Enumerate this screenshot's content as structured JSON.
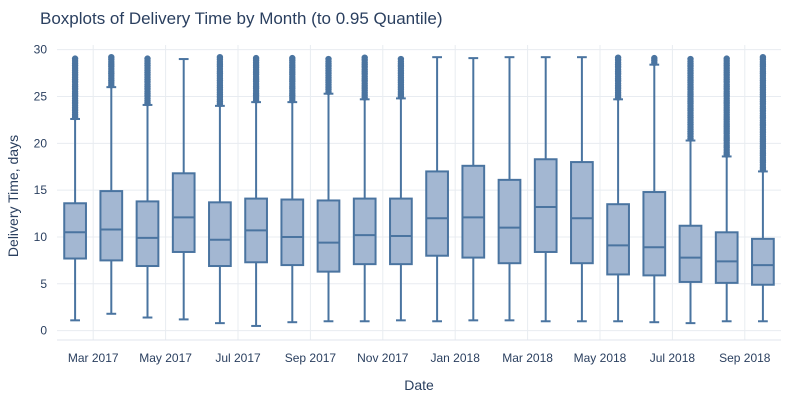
{
  "chart_data": {
    "type": "box",
    "title": "Boxplots of Delivery Time by Month (to 0.95 Quantile)",
    "xlabel": "Date",
    "ylabel": "Delivery Time, days",
    "ylim": [
      -1,
      30.5
    ],
    "yticks": [
      0,
      5,
      10,
      15,
      20,
      25,
      30
    ],
    "xtick_labels": [
      "Mar 2017",
      "May 2017",
      "Jul 2017",
      "Sep 2017",
      "Nov 2017",
      "Jan 2018",
      "Mar 2018",
      "May 2018",
      "Jul 2018",
      "Sep 2018"
    ],
    "grid": true,
    "colors": {
      "box_fill": "#a3b7d2",
      "box_line": "#4a74a0",
      "grid": "#e8ecf1",
      "text": "#2a3f5f"
    },
    "months": [
      "2017-02",
      "2017-03",
      "2017-04",
      "2017-05",
      "2017-06",
      "2017-07",
      "2017-08",
      "2017-09",
      "2017-10",
      "2017-11",
      "2017-12",
      "2018-01",
      "2018-02",
      "2018-03",
      "2018-04",
      "2018-05",
      "2018-06",
      "2018-07",
      "2018-08",
      "2018-09"
    ],
    "boxes": [
      {
        "month": "2017-02",
        "min": 1.1,
        "q1": 7.7,
        "median": 10.5,
        "q3": 13.6,
        "max": 22.6,
        "outliers_from": 22.8
      },
      {
        "month": "2017-03",
        "min": 1.8,
        "q1": 7.5,
        "median": 10.8,
        "q3": 14.9,
        "max": 26.0,
        "outliers_from": 26.2
      },
      {
        "month": "2017-04",
        "min": 1.4,
        "q1": 6.9,
        "median": 9.9,
        "q3": 13.8,
        "max": 24.1,
        "outliers_from": 24.3
      },
      {
        "month": "2017-05",
        "min": 1.2,
        "q1": 8.4,
        "median": 12.1,
        "q3": 16.8,
        "max": 29.0,
        "outliers_from": null
      },
      {
        "month": "2017-06",
        "min": 0.8,
        "q1": 6.9,
        "median": 9.7,
        "q3": 13.7,
        "max": 24.0,
        "outliers_from": 24.2
      },
      {
        "month": "2017-07",
        "min": 0.5,
        "q1": 7.3,
        "median": 10.7,
        "q3": 14.1,
        "max": 24.4,
        "outliers_from": 24.6
      },
      {
        "month": "2017-08",
        "min": 0.9,
        "q1": 7.0,
        "median": 10.0,
        "q3": 14.0,
        "max": 24.4,
        "outliers_from": 24.6
      },
      {
        "month": "2017-09",
        "min": 1.0,
        "q1": 6.3,
        "median": 9.4,
        "q3": 13.9,
        "max": 25.3,
        "outliers_from": 25.5
      },
      {
        "month": "2017-10",
        "min": 1.0,
        "q1": 7.1,
        "median": 10.2,
        "q3": 14.1,
        "max": 24.7,
        "outliers_from": 24.9
      },
      {
        "month": "2017-11",
        "min": 1.1,
        "q1": 7.1,
        "median": 10.1,
        "q3": 14.1,
        "max": 24.8,
        "outliers_from": 25.0
      },
      {
        "month": "2017-12",
        "min": 1.0,
        "q1": 8.0,
        "median": 12.0,
        "q3": 17.0,
        "max": 29.2,
        "outliers_from": null
      },
      {
        "month": "2018-01",
        "min": 1.1,
        "q1": 7.8,
        "median": 12.1,
        "q3": 17.6,
        "max": 29.1,
        "outliers_from": null
      },
      {
        "month": "2018-02",
        "min": 1.1,
        "q1": 7.2,
        "median": 11.0,
        "q3": 16.1,
        "max": 29.2,
        "outliers_from": null
      },
      {
        "month": "2018-03",
        "min": 1.0,
        "q1": 8.4,
        "median": 13.2,
        "q3": 18.3,
        "max": 29.2,
        "outliers_from": null
      },
      {
        "month": "2018-04",
        "min": 1.0,
        "q1": 7.2,
        "median": 12.0,
        "q3": 18.0,
        "max": 29.2,
        "outliers_from": null
      },
      {
        "month": "2018-05",
        "min": 1.0,
        "q1": 6.0,
        "median": 9.1,
        "q3": 13.5,
        "max": 24.7,
        "outliers_from": 24.9
      },
      {
        "month": "2018-06",
        "min": 0.9,
        "q1": 5.9,
        "median": 8.9,
        "q3": 14.8,
        "max": 28.4,
        "outliers_from": 28.6
      },
      {
        "month": "2018-07",
        "min": 0.8,
        "q1": 5.2,
        "median": 7.8,
        "q3": 11.2,
        "max": 20.3,
        "outliers_from": 20.5
      },
      {
        "month": "2018-08",
        "min": 1.0,
        "q1": 5.1,
        "median": 7.4,
        "q3": 10.5,
        "max": 18.6,
        "outliers_from": 18.8
      },
      {
        "month": "2018-09",
        "min": 1.0,
        "q1": 4.9,
        "median": 7.0,
        "q3": 9.8,
        "max": 17.0,
        "outliers_from": 17.2
      }
    ],
    "outliers_to": 29.2
  }
}
